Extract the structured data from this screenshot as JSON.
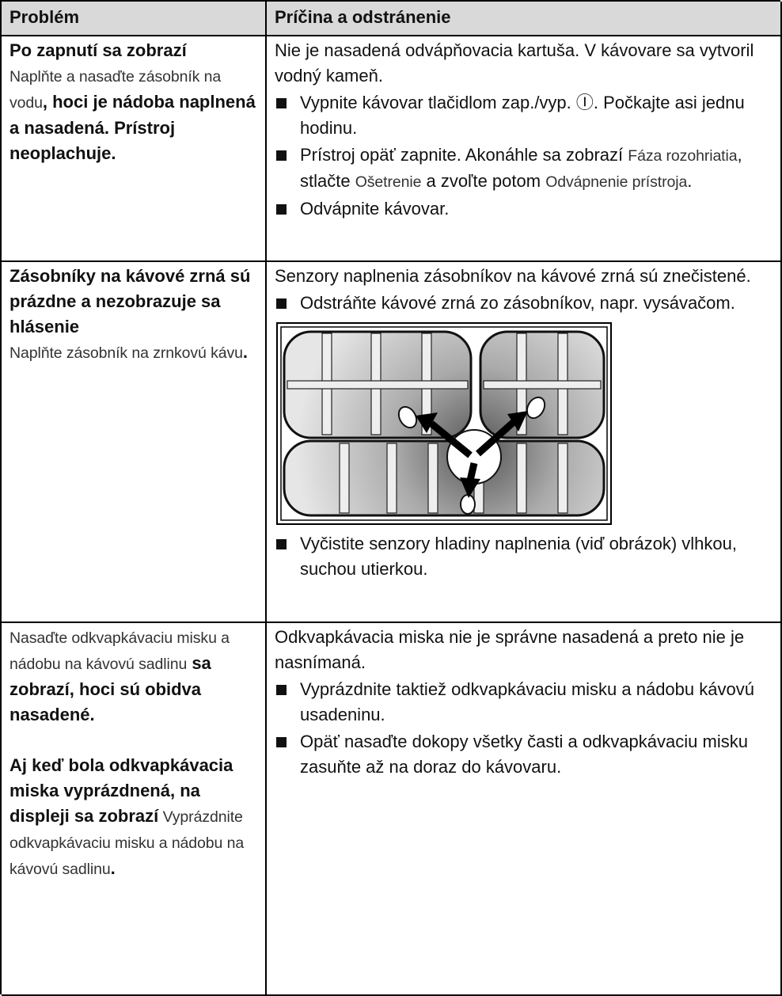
{
  "table": {
    "header": [
      "Problém",
      "Príčina a odstránenie"
    ],
    "rows": [
      {
        "problem": [
          [
            "Po zapnutí sa zobrazí",
            "Naplňte a nasaďte zásobník na vodu",
            ", hoci je nádoba naplnená a nasadená. Prístroj neoplachuje."
          ]
        ],
        "cause": "Nie je nasadená odvápňovacia kartuša. V kávovare sa vytvoril vodný kameň.",
        "steps": [
          [
            "Vypnite kávovar tlačidlom zap./vyp. Ⓘ. Počkajte asi jednu hodinu."
          ],
          [
            "Prístroj opäť zapnite. Akonáhle sa zobrazí ",
            "Fáza rozohriatia",
            ", stlačte ",
            "Ošetrenie",
            " a zvoľte potom ",
            "Odvápnenie prístroja",
            "."
          ],
          [
            "Odvápnite kávovar."
          ]
        ]
      },
      {
        "problem": [
          [
            "Zásobníky na kávové zrná sú prázdne a nezobrazuje sa hlásenie",
            "Naplňte zásobník na zrnkovú kávu",
            "."
          ]
        ],
        "cause": "Senzory naplnenia zásobníkov na kávové zrná sú znečistené.",
        "steps": [
          [
            "Odstráňte kávové zrná zo zásobníkov, napr. vysávačom."
          ],
          [
            "Vyčistite senzory hladiny naplnenia (viď obrázok) vlhkou, suchou utierkou."
          ]
        ]
      },
      {
        "problem": [
          [
            "Nasaďte odkvapkávaciu misku a nádobu na kávovú sadlinu",
            " sa zobrazí, hoci sú obidva nasadené."
          ],
          [
            "Aj keď bola odkvapkávacia miska vyprázdnená, na displeji sa zobrazí",
            " Vyprázdnite odkvapkávaciu misku a nádobu na kávovú sadlinu",
            "."
          ]
        ],
        "cause": "Odkvapkávacia miska nie je správne nasadená a preto nie je nasnímaná.",
        "steps": [
          [
            "Vyprázdnite taktiež odkvapkávaciu misku a nádobu kávovú usadeninu."
          ],
          [
            "Opäť nasaďte dokopy všetky časti a odkvapkávaciu misku zasuňte až na doraz do kávovaru."
          ]
        ]
      }
    ]
  }
}
